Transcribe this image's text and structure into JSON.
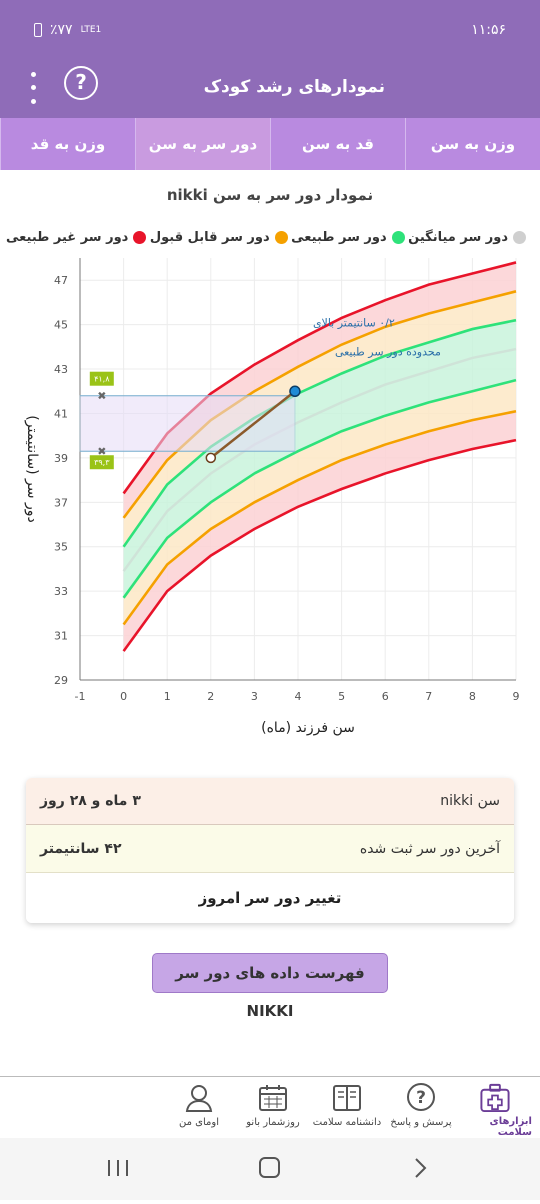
{
  "status": {
    "time": "۱۱:۵۶",
    "battery": "٪۷۷",
    "network": "LTE1"
  },
  "appbar": {
    "title": "نمودارهای رشد کودک"
  },
  "tabs": [
    {
      "label": "وزن به سن",
      "active": false
    },
    {
      "label": "قد به سن",
      "active": false
    },
    {
      "label": "دور سر به سن",
      "active": true
    },
    {
      "label": "وزن به قد",
      "active": false
    }
  ],
  "chart_title": "نمودار دور سر به سن nikki",
  "legend": [
    {
      "label": "دور سر غیر طبیعی",
      "color": "#e8142a"
    },
    {
      "label": "دور سر قابل قبول",
      "color": "#f5a100"
    },
    {
      "label": "دور سر طبیعی",
      "color": "#2ee27a"
    },
    {
      "label": "دور سر میانگین",
      "color": "#cfcfcf"
    }
  ],
  "chart_data": {
    "type": "line",
    "xlabel": "سن فرزند (ماه)",
    "ylabel": "دور سر (سانتیمتر)",
    "xlim": [
      -1,
      9
    ],
    "ylim": [
      29,
      48
    ],
    "xticks": [
      -1,
      0,
      1,
      2,
      3,
      4,
      5,
      6,
      7,
      8,
      9
    ],
    "yticks": [
      29,
      31,
      33,
      35,
      37,
      39,
      41,
      43,
      45,
      47
    ],
    "x": [
      0,
      1,
      2,
      3,
      4,
      5,
      6,
      7,
      8,
      9
    ],
    "series": [
      {
        "band": "abnormal",
        "color": "#e8142a",
        "values": [
          30.3,
          33.0,
          34.6,
          35.8,
          36.8,
          37.6,
          38.3,
          38.9,
          39.4,
          39.8
        ]
      },
      {
        "band": "acceptable",
        "color": "#f5a100",
        "values": [
          31.5,
          34.2,
          35.8,
          37.0,
          38.0,
          38.9,
          39.6,
          40.2,
          40.7,
          41.1
        ]
      },
      {
        "band": "normal",
        "color": "#2ee27a",
        "values": [
          32.7,
          35.4,
          37.0,
          38.3,
          39.3,
          40.2,
          40.9,
          41.5,
          42.0,
          42.5
        ]
      },
      {
        "band": "mean",
        "color": "#cfe3d8",
        "values": [
          33.9,
          36.6,
          38.3,
          39.6,
          40.6,
          41.5,
          42.3,
          42.9,
          43.5,
          43.9
        ]
      },
      {
        "band": "normal",
        "color": "#2ee27a",
        "values": [
          35.0,
          37.8,
          39.5,
          40.8,
          41.9,
          42.8,
          43.6,
          44.2,
          44.8,
          45.2
        ]
      },
      {
        "band": "acceptable",
        "color": "#f5a100",
        "values": [
          36.3,
          38.9,
          40.7,
          42.0,
          43.1,
          44.1,
          44.9,
          45.5,
          46.0,
          46.5
        ]
      },
      {
        "band": "abnormal",
        "color": "#e8142a",
        "values": [
          37.4,
          40.1,
          41.9,
          43.2,
          44.3,
          45.3,
          46.1,
          46.8,
          47.3,
          47.8
        ]
      }
    ],
    "child_points": [
      {
        "x": 2,
        "y": 39.0
      },
      {
        "x": 3.93,
        "y": 42.0
      }
    ],
    "range_labels": [
      "۴۱,۸",
      "۳۹,۳"
    ],
    "range_values": [
      41.8,
      39.3
    ],
    "annotation_line1": "۰/۲ سانتیمتر بالای",
    "annotation_line2": "محدوده دور سر طبیعی"
  },
  "info": {
    "age_label": "سن nikki",
    "age_value": "۳ ماه و ۲۸ روز",
    "last_label": "آخرین دور سر ثبت شده",
    "last_value": "۴۲ سانتیمتر",
    "change_label": "تغییر دور سر امروز"
  },
  "list_button": "فهرست داده های دور سر NIKKI",
  "bottom_nav": [
    {
      "label": "ابزارهای سلامت",
      "icon": "medical-kit-icon",
      "active": true
    },
    {
      "label": "پرسش و پاسخ",
      "icon": "question-icon",
      "active": false
    },
    {
      "label": "دانشنامه سلامت",
      "icon": "book-icon",
      "active": false
    },
    {
      "label": "روزشمار بانو",
      "icon": "calendar-icon",
      "active": false
    },
    {
      "label": "اومای من",
      "icon": "profile-icon",
      "active": false
    }
  ]
}
